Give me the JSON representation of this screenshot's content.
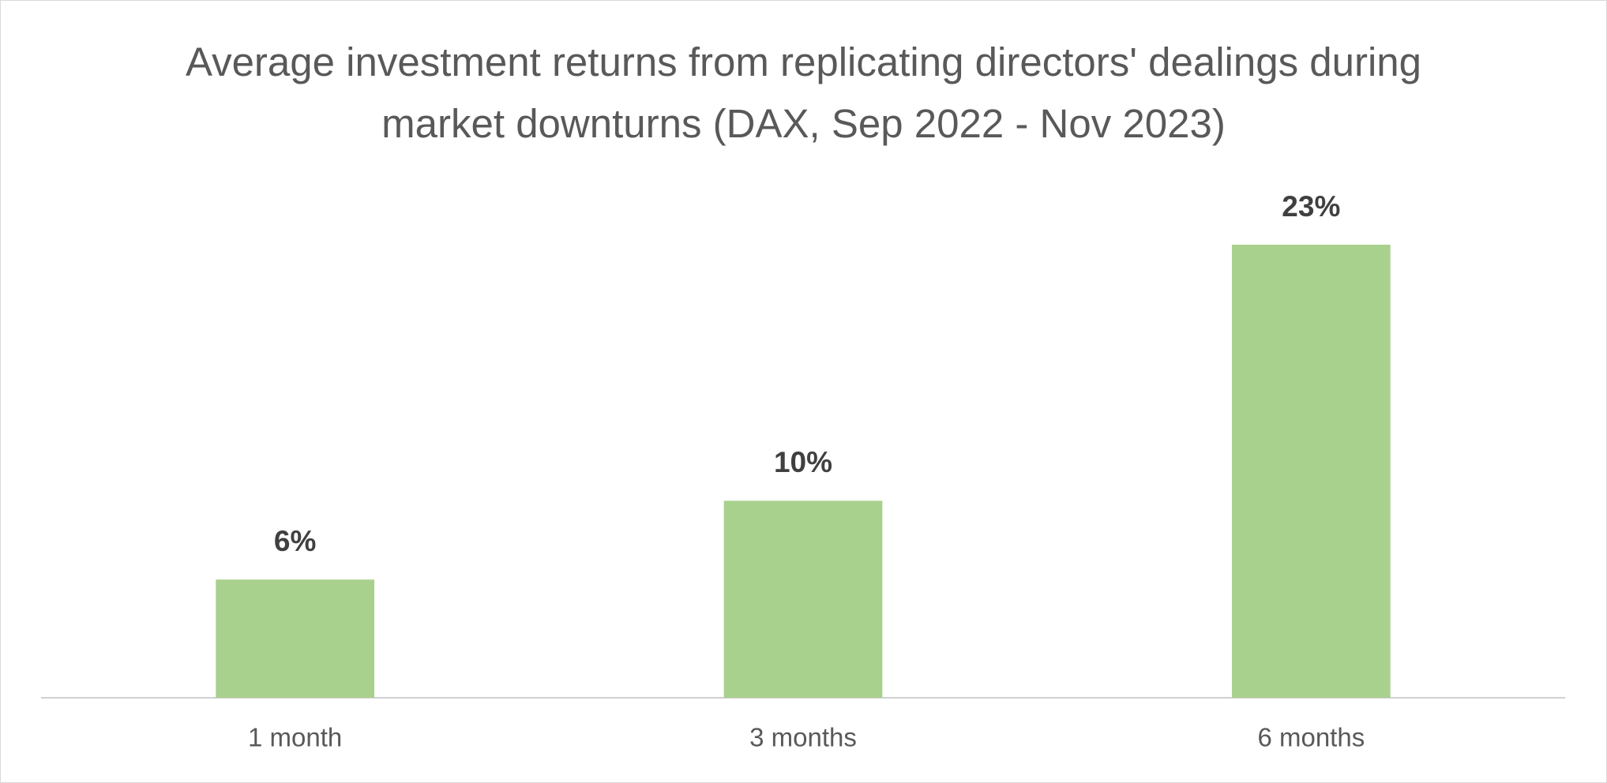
{
  "chart_data": {
    "type": "bar",
    "title": "Average investment returns from replicating directors' dealings during market downturns (DAX, Sep 2022 - Nov 2023)",
    "categories": [
      "1 month",
      "3 months",
      "6 months"
    ],
    "values": [
      6,
      10,
      23
    ],
    "value_labels": [
      "6%",
      "10%",
      "23%"
    ],
    "color": "#a9d18e",
    "grid": false
  }
}
